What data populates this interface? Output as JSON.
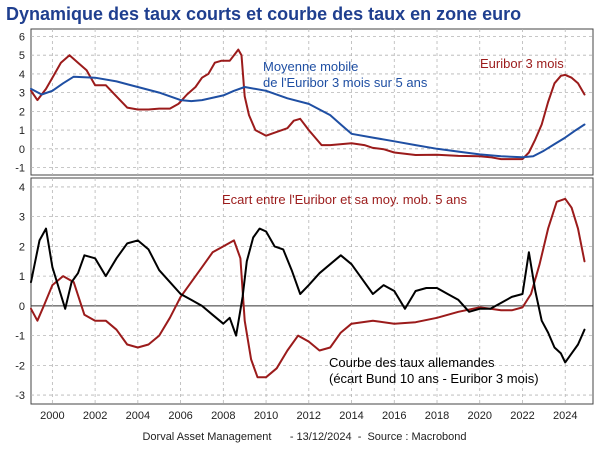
{
  "title": "Dynamique des taux courts et courbe des taux en zone euro",
  "footer": "Dorval Asset Management      - 13/12/2024  -  Source : Macrobond",
  "colors": {
    "title": "#1f3f8f",
    "red": "#9b1b1b",
    "blue": "#1f4fa3",
    "black": "#000000",
    "grid": "#b5b5b5"
  },
  "chart_data": [
    {
      "type": "line",
      "title": "",
      "xlim": [
        1999.0,
        2025.3
      ],
      "ylim": [
        -1.4,
        6.4
      ],
      "yticks": [
        -1,
        0,
        1,
        2,
        3,
        4,
        5,
        6
      ],
      "grid": true,
      "annotations": [
        {
          "text": "Moyenne mobile",
          "color": "#1f4fa3"
        },
        {
          "text": "de l'Euribor 3 mois sur 5 ans",
          "color": "#1f4fa3"
        },
        {
          "text": "Euribor 3 mois",
          "color": "#9b1b1b"
        }
      ],
      "series": [
        {
          "name": "Euribor 3 mois",
          "color": "#9b1b1b",
          "x": [
            1999.0,
            1999.3,
            1999.7,
            2000.0,
            2000.4,
            2000.8,
            2001.2,
            2001.6,
            2002.0,
            2002.5,
            2003.0,
            2003.5,
            2004.0,
            2004.5,
            2005.0,
            2005.5,
            2005.9,
            2006.3,
            2006.7,
            2007.0,
            2007.3,
            2007.6,
            2007.9,
            2008.3,
            2008.7,
            2008.85,
            2009.0,
            2009.2,
            2009.5,
            2010.0,
            2010.5,
            2011.0,
            2011.3,
            2011.6,
            2012.0,
            2012.3,
            2012.6,
            2013.0,
            2014.0,
            2014.6,
            2015.0,
            2015.5,
            2016.0,
            2017.0,
            2018.0,
            2019.0,
            2020.0,
            2020.5,
            2021.0,
            2022.0,
            2022.3,
            2022.6,
            2022.9,
            2023.2,
            2023.5,
            2023.8,
            2024.0,
            2024.3,
            2024.6,
            2024.9
          ],
          "y": [
            3.1,
            2.6,
            3.2,
            3.8,
            4.6,
            5.0,
            4.6,
            4.2,
            3.4,
            3.4,
            2.8,
            2.2,
            2.1,
            2.1,
            2.15,
            2.15,
            2.4,
            2.9,
            3.3,
            3.8,
            4.0,
            4.6,
            4.7,
            4.7,
            5.3,
            5.0,
            2.8,
            1.8,
            1.0,
            0.7,
            0.9,
            1.1,
            1.5,
            1.6,
            1.0,
            0.6,
            0.2,
            0.2,
            0.3,
            0.2,
            0.05,
            -0.02,
            -0.2,
            -0.33,
            -0.32,
            -0.38,
            -0.4,
            -0.45,
            -0.55,
            -0.55,
            -0.2,
            0.5,
            1.3,
            2.5,
            3.5,
            3.9,
            3.95,
            3.8,
            3.5,
            2.9
          ]
        },
        {
          "name": "Moyenne mobile de l'Euribor 3 mois sur 5 ans",
          "color": "#1f4fa3",
          "x": [
            1999.0,
            1999.5,
            2000.0,
            2000.5,
            2001.0,
            2002.0,
            2003.0,
            2004.0,
            2005.0,
            2006.0,
            2006.5,
            2007.0,
            2008.0,
            2008.5,
            2009.0,
            2010.0,
            2011.0,
            2012.0,
            2013.0,
            2013.5,
            2014.0,
            2015.0,
            2016.0,
            2017.0,
            2018.0,
            2019.0,
            2020.0,
            2021.0,
            2022.0,
            2022.5,
            2023.0,
            2023.5,
            2024.0,
            2024.5,
            2024.9
          ],
          "y": [
            3.2,
            2.9,
            3.1,
            3.5,
            3.85,
            3.8,
            3.6,
            3.3,
            3.0,
            2.6,
            2.55,
            2.6,
            2.85,
            3.1,
            3.3,
            3.1,
            2.7,
            2.4,
            1.8,
            1.3,
            0.8,
            0.6,
            0.4,
            0.2,
            0.0,
            -0.15,
            -0.3,
            -0.4,
            -0.45,
            -0.4,
            -0.1,
            0.25,
            0.6,
            1.0,
            1.3
          ]
        }
      ]
    },
    {
      "type": "line",
      "title": "",
      "xlim": [
        1999.0,
        2025.3
      ],
      "ylim": [
        -3.3,
        4.3
      ],
      "yticks": [
        -3,
        -2,
        -1,
        0,
        1,
        2,
        3,
        4
      ],
      "xticks": [
        2000,
        2002,
        2004,
        2006,
        2008,
        2010,
        2012,
        2014,
        2016,
        2018,
        2020,
        2022,
        2024
      ],
      "grid": true,
      "annotations": [
        {
          "text": "Ecart entre l'Euribor et sa moy. mob. 5 ans",
          "color": "#9b1b1b"
        },
        {
          "text": "Courbe des taux allemandes",
          "color": "#000000"
        },
        {
          "text": "(écart Bund 10 ans - Euribor 3 mois)",
          "color": "#000000"
        }
      ],
      "series": [
        {
          "name": "Ecart entre l'Euribor et sa moy. mob. 5 ans",
          "color": "#9b1b1b",
          "x": [
            1999.0,
            1999.3,
            1999.6,
            2000.0,
            2000.5,
            2001.0,
            2001.5,
            2002.0,
            2002.5,
            2003.0,
            2003.5,
            2004.0,
            2004.5,
            2005.0,
            2005.5,
            2006.0,
            2006.5,
            2007.0,
            2007.5,
            2008.0,
            2008.5,
            2008.8,
            2009.0,
            2009.3,
            2009.6,
            2010.0,
            2010.5,
            2011.0,
            2011.5,
            2012.0,
            2012.5,
            2013.0,
            2013.5,
            2014.0,
            2015.0,
            2016.0,
            2017.0,
            2018.0,
            2019.0,
            2020.0,
            2020.5,
            2021.0,
            2021.5,
            2022.0,
            2022.4,
            2022.8,
            2023.2,
            2023.6,
            2024.0,
            2024.3,
            2024.6,
            2024.9
          ],
          "y": [
            -0.1,
            -0.5,
            0.0,
            0.7,
            1.0,
            0.8,
            -0.3,
            -0.5,
            -0.5,
            -0.8,
            -1.3,
            -1.4,
            -1.3,
            -1.0,
            -0.4,
            0.3,
            0.8,
            1.3,
            1.8,
            2.0,
            2.2,
            1.6,
            -0.5,
            -1.8,
            -2.4,
            -2.4,
            -2.1,
            -1.5,
            -1.0,
            -1.2,
            -1.5,
            -1.4,
            -0.9,
            -0.6,
            -0.5,
            -0.6,
            -0.55,
            -0.4,
            -0.2,
            -0.05,
            -0.1,
            -0.15,
            -0.15,
            -0.05,
            0.4,
            1.4,
            2.6,
            3.5,
            3.6,
            3.3,
            2.6,
            1.5
          ]
        },
        {
          "name": "Courbe des taux allemandes (écart Bund 10 ans - Euribor 3 mois)",
          "color": "#000000",
          "x": [
            1999.0,
            1999.4,
            1999.7,
            2000.0,
            2000.3,
            2000.6,
            2000.9,
            2001.2,
            2001.5,
            2002.0,
            2002.5,
            2003.0,
            2003.5,
            2004.0,
            2004.5,
            2005.0,
            2005.5,
            2006.0,
            2006.5,
            2007.0,
            2007.5,
            2008.0,
            2008.3,
            2008.6,
            2008.9,
            2009.1,
            2009.4,
            2009.7,
            2010.0,
            2010.4,
            2010.8,
            2011.2,
            2011.6,
            2012.0,
            2012.5,
            2013.0,
            2013.5,
            2014.0,
            2014.5,
            2015.0,
            2015.5,
            2016.0,
            2016.5,
            2017.0,
            2017.5,
            2018.0,
            2018.5,
            2019.0,
            2019.5,
            2020.0,
            2020.5,
            2021.0,
            2021.5,
            2022.0,
            2022.3,
            2022.6,
            2022.9,
            2023.2,
            2023.5,
            2023.8,
            2024.0,
            2024.3,
            2024.6,
            2024.9
          ],
          "y": [
            0.8,
            2.2,
            2.6,
            1.3,
            0.6,
            -0.1,
            0.8,
            1.1,
            1.7,
            1.6,
            1.0,
            1.6,
            2.1,
            2.2,
            1.9,
            1.2,
            0.8,
            0.4,
            0.2,
            0.0,
            -0.3,
            -0.6,
            -0.4,
            -1.0,
            0.3,
            1.5,
            2.3,
            2.6,
            2.5,
            2.0,
            1.9,
            1.2,
            0.4,
            0.7,
            1.1,
            1.4,
            1.7,
            1.4,
            0.9,
            0.4,
            0.7,
            0.5,
            -0.1,
            0.5,
            0.6,
            0.6,
            0.4,
            0.2,
            -0.2,
            -0.1,
            -0.1,
            0.1,
            0.3,
            0.4,
            1.8,
            0.5,
            -0.5,
            -0.9,
            -1.4,
            -1.6,
            -1.9,
            -1.6,
            -1.3,
            -0.8
          ]
        }
      ]
    }
  ]
}
